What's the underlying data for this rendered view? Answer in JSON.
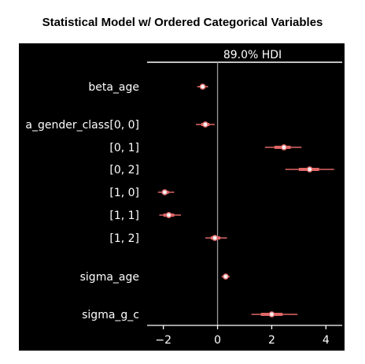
{
  "title": "Statistical Model w/ Ordered Categorical Variables",
  "chart_data": {
    "type": "forest",
    "hdi_label": "89.0% HDI",
    "xlim": [
      -2.6,
      4.6
    ],
    "x_ticks": [
      -2,
      0,
      2,
      4
    ],
    "x_tick_labels": [
      "−2",
      "0",
      "2",
      "4"
    ],
    "reference_line": 0,
    "colors": {
      "background": "#000000",
      "interval": "#e06666",
      "axis": "#ffffff",
      "refline": "#9a9a9a"
    },
    "rows": [
      {
        "label": "beta_age",
        "mean": -0.55,
        "iqr": [
          -0.65,
          -0.45
        ],
        "hdi": [
          -0.75,
          -0.35
        ]
      },
      {
        "label": "a_gender_class[0, 0]",
        "mean": -0.45,
        "iqr": [
          -0.6,
          -0.3
        ],
        "hdi": [
          -0.8,
          -0.1
        ]
      },
      {
        "label": "[0, 1]",
        "mean": 2.45,
        "iqr": [
          2.1,
          2.7
        ],
        "hdi": [
          1.75,
          3.1
        ]
      },
      {
        "label": "[0, 2]",
        "mean": 3.4,
        "iqr": [
          3.0,
          3.75
        ],
        "hdi": [
          2.5,
          4.3
        ]
      },
      {
        "label": "[1, 0]",
        "mean": -1.95,
        "iqr": [
          -2.05,
          -1.8
        ],
        "hdi": [
          -2.2,
          -1.6
        ]
      },
      {
        "label": "[1, 1]",
        "mean": -1.8,
        "iqr": [
          -2.0,
          -1.6
        ],
        "hdi": [
          -2.15,
          -1.35
        ]
      },
      {
        "label": "[1, 2]",
        "mean": -0.1,
        "iqr": [
          -0.25,
          0.1
        ],
        "hdi": [
          -0.45,
          0.35
        ]
      },
      {
        "label": "sigma_age",
        "mean": 0.3,
        "iqr": [
          0.22,
          0.38
        ],
        "hdi": [
          0.15,
          0.45
        ]
      },
      {
        "label": "sigma_g_c",
        "mean": 2.0,
        "iqr": [
          1.6,
          2.4
        ],
        "hdi": [
          1.25,
          2.95
        ]
      }
    ]
  }
}
